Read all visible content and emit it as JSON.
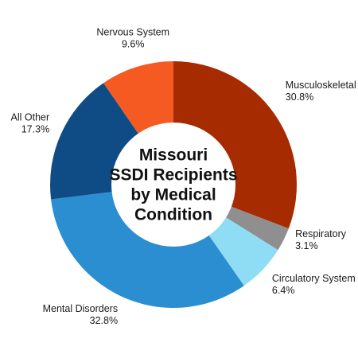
{
  "chart_data": {
    "type": "pie",
    "title_lines": [
      "Missouri",
      "SSDI Recipients",
      "by Medical",
      "Condition"
    ],
    "slices": [
      {
        "name": "Musculoskeletal",
        "value": 30.8,
        "label": "30.8%",
        "color": "#a62b00"
      },
      {
        "name": "Respiratory",
        "value": 3.1,
        "label": "3.1%",
        "color": "#8f8f8f"
      },
      {
        "name": "Circulatory System",
        "value": 6.4,
        "label": "6.4%",
        "color": "#8fdcf5"
      },
      {
        "name": "Mental Disorders",
        "value": 32.8,
        "label": "32.8%",
        "color": "#2a8ed1"
      },
      {
        "name": "All Other",
        "value": 17.3,
        "label": "17.3%",
        "color": "#0f4c86"
      },
      {
        "name": "Nervous System",
        "value": 9.6,
        "label": "9.6%",
        "color": "#f55a22"
      }
    ],
    "start_angle_deg": 0,
    "direction": "clockwise",
    "donut": true
  }
}
